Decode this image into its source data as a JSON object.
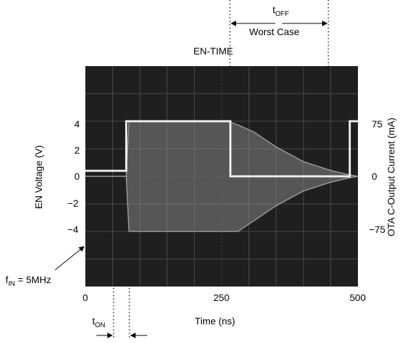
{
  "chart_data": {
    "type": "line",
    "title": "EN-TIME",
    "xlabel": "Time (ns)",
    "ylabel_left": "EN Voltage (V)",
    "ylabel_right": "OTA C-Output Current (mA)",
    "xlim": [
      0,
      500
    ],
    "ylim_left": [
      -8,
      8
    ],
    "ylim_right": [
      -150,
      150
    ],
    "x_ticks": [
      "0",
      "250",
      "500"
    ],
    "y_left_ticks": [
      {
        "label": "4",
        "value": 4
      },
      {
        "label": "2",
        "value": 2
      },
      {
        "label": "0",
        "value": 0
      },
      {
        "label": "−2",
        "value": -2
      },
      {
        "label": "−4",
        "value": -4
      }
    ],
    "y_right_ticks": [
      {
        "label": "75",
        "value": 75
      },
      {
        "label": "0",
        "value": 0
      },
      {
        "label": "−75",
        "value": -75
      }
    ],
    "grid": true,
    "series": [
      {
        "axis": "left",
        "x": [
          0,
          75,
          75,
          266,
          266,
          485,
          485,
          500
        ],
        "values": [
          0.4,
          0.4,
          4,
          4,
          0,
          0,
          4,
          4
        ]
      },
      {
        "axis": "right",
        "envelope": true,
        "x": [
          0,
          75,
          80,
          260,
          280,
          310,
          350,
          400,
          450,
          485,
          500
        ],
        "upper": [
          0,
          0,
          75,
          75,
          70,
          60,
          40,
          20,
          8,
          2,
          0
        ],
        "lower": [
          0,
          0,
          -75,
          -75,
          -75,
          -60,
          -40,
          -20,
          -8,
          -2,
          0
        ]
      }
    ]
  },
  "annotations": {
    "t_off_main": "t",
    "t_off_sub": "OFF",
    "worst_case": "Worst Case",
    "f_in_main": "f",
    "f_in_sub": "IN",
    "f_in_value": " = 5MHz",
    "t_on_main": "t",
    "t_on_sub": "ON"
  },
  "colors": {
    "screen": "#1f1f1f",
    "trace": "#f0f0f0",
    "envelope": "#9a9a9a",
    "grid": "#4a4a4a"
  }
}
